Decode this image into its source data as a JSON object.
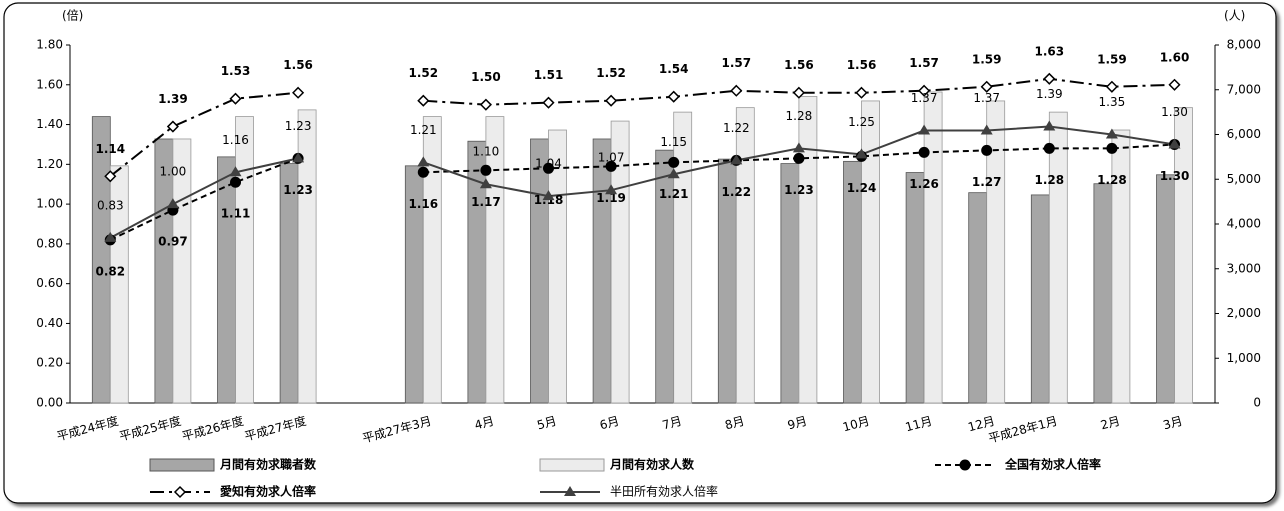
{
  "chart_data": {
    "type": "bar",
    "y_unit_label": "(倍)",
    "y2_unit_label": "(人)",
    "categories": [
      "平成24年度",
      "平成25年度",
      "平成26年度",
      "平成27年度",
      null,
      "平成27年3月",
      "4月",
      "5月",
      "6月",
      "7月",
      "8月",
      "9月",
      "10月",
      "11月",
      "12月",
      "平成28年1月",
      "2月",
      "3月"
    ],
    "ylim": [
      0,
      1.8
    ],
    "yticks": [
      {
        "value": 0,
        "label": "0.00"
      },
      {
        "value": 0.2,
        "label": "0.20"
      },
      {
        "value": 0.4,
        "label": "0.40"
      },
      {
        "value": 0.6,
        "label": "0.60"
      },
      {
        "value": 0.8,
        "label": "0.80"
      },
      {
        "value": 1.0,
        "label": "1.00"
      },
      {
        "value": 1.2,
        "label": "1.20"
      },
      {
        "value": 1.4,
        "label": "1.40"
      },
      {
        "value": 1.6,
        "label": "1.60"
      },
      {
        "value": 1.8,
        "label": "1.80"
      }
    ],
    "y2lim": [
      0,
      8000
    ],
    "y2ticks": [
      0,
      {
        "value": 1000,
        "label": "1,000"
      },
      {
        "value": 2000,
        "label": "2,000"
      },
      {
        "value": 3000,
        "label": "3,000"
      },
      {
        "value": 4000,
        "label": "4,000"
      },
      {
        "value": 5000,
        "label": "5,000"
      },
      {
        "value": 6000,
        "label": "6,000"
      },
      {
        "value": 7000,
        "label": "7,000"
      },
      {
        "value": 8000,
        "label": "8,000"
      }
    ],
    "series": [
      {
        "name": "月間有効求職者数",
        "type": "bar",
        "axis": "y2",
        "color": "#a6a6a6",
        "values": [
          6400,
          5900,
          5500,
          5350,
          null,
          5300,
          5850,
          5900,
          5900,
          5650,
          5450,
          5350,
          5400,
          5150,
          4700,
          4650,
          4900,
          5100
        ]
      },
      {
        "name": "月間有効求人数",
        "type": "bar",
        "axis": "y2",
        "color": "#ececec",
        "values": [
          5300,
          5900,
          6400,
          6550,
          null,
          6400,
          6400,
          6100,
          6300,
          6500,
          6600,
          6850,
          6750,
          6950,
          6750,
          6500,
          6100,
          6600
        ]
      },
      {
        "name": "全国有効求人倍率",
        "type": "line",
        "color": "#000000",
        "marker": "circle",
        "dash": "6,4",
        "values": [
          0.82,
          0.97,
          1.11,
          1.23,
          null,
          1.16,
          1.17,
          1.18,
          1.19,
          1.21,
          1.22,
          1.23,
          1.24,
          1.26,
          1.27,
          1.28,
          1.28,
          1.3
        ],
        "value_labels": [
          "0.82",
          "0.97",
          "1.11",
          "1.23",
          null,
          "1.16",
          "1.17",
          "1.18",
          "1.19",
          "1.21",
          "1.22",
          "1.23",
          "1.24",
          "1.26",
          "1.27",
          "1.28",
          "1.28",
          "1.30"
        ]
      },
      {
        "name": "愛知有効求人倍率",
        "type": "line",
        "color": "#000000",
        "marker": "diamond",
        "dash": "14,5,3,5",
        "values": [
          1.14,
          1.39,
          1.53,
          1.56,
          null,
          1.52,
          1.5,
          1.51,
          1.52,
          1.54,
          1.57,
          1.56,
          1.56,
          1.57,
          1.59,
          1.63,
          1.59,
          1.6
        ],
        "value_labels": [
          "1.14",
          "1.39",
          "1.53",
          "1.56",
          null,
          "1.52",
          "1.50",
          "1.51",
          "1.52",
          "1.54",
          "1.57",
          "1.56",
          "1.56",
          "1.57",
          "1.59",
          "1.63",
          "1.59",
          "1.60"
        ]
      },
      {
        "name": "半田所有効求人倍率",
        "type": "line",
        "color": "#404040",
        "marker": "triangle",
        "dash": "none",
        "values": [
          0.83,
          1.0,
          1.16,
          1.23,
          null,
          1.21,
          1.1,
          1.04,
          1.07,
          1.15,
          1.22,
          1.28,
          1.25,
          1.37,
          1.37,
          1.39,
          1.35,
          1.3
        ],
        "value_labels": [
          "0.83",
          "1.00",
          "1.16",
          "1.23",
          null,
          "1.21",
          "1.10",
          "1.04",
          "1.07",
          "1.15",
          "1.22",
          "1.28",
          "1.25",
          "1.37",
          "1.37",
          "1.39",
          "1.35",
          "1.30"
        ]
      }
    ]
  }
}
